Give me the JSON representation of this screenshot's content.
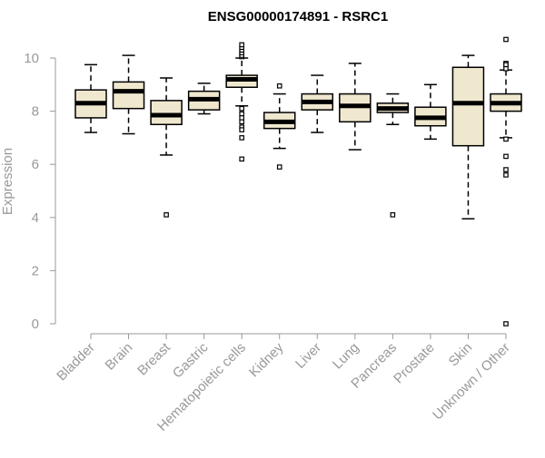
{
  "chart_data": {
    "type": "boxplot",
    "title": "ENSG00000174891 - RSRC1",
    "xlabel": "",
    "ylabel": "Expression",
    "ylim": [
      0,
      10.7
    ],
    "yticks": [
      0,
      2,
      4,
      6,
      8,
      10
    ],
    "grid": false,
    "legend": "none",
    "box_fill": "#efe8cf",
    "outlier_style": "open-square",
    "categories": [
      "Bladder",
      "Brain",
      "Breast",
      "Gastric",
      "Hematopoietic cells",
      "Kidney",
      "Liver",
      "Lung",
      "Pancreas",
      "Prostate",
      "Skin",
      "Unknown / Other"
    ],
    "tick_labels": [
      "Bladder",
      "Brain",
      "Breast",
      "Gastric",
      "Hematopoietic cells",
      "Kidney",
      "Liver",
      "Lung",
      "Pancreas",
      "Prostate",
      "Skin",
      "Unknown / Other"
    ],
    "boxes": [
      {
        "category": "Bladder",
        "whisker_low": 7.2,
        "q1": 7.75,
        "median": 8.3,
        "q3": 8.8,
        "whisker_high": 9.75,
        "outliers": []
      },
      {
        "category": "Brain",
        "whisker_low": 7.15,
        "q1": 8.1,
        "median": 8.75,
        "q3": 9.1,
        "whisker_high": 10.1,
        "outliers": []
      },
      {
        "category": "Breast",
        "whisker_low": 6.35,
        "q1": 7.5,
        "median": 7.85,
        "q3": 8.4,
        "whisker_high": 9.25,
        "outliers": [
          4.1
        ]
      },
      {
        "category": "Gastric",
        "whisker_low": 7.9,
        "q1": 8.05,
        "median": 8.45,
        "q3": 8.75,
        "whisker_high": 9.05,
        "outliers": []
      },
      {
        "category": "Hematopoietic cells",
        "whisker_low": 8.2,
        "q1": 8.9,
        "median": 9.2,
        "q3": 9.35,
        "whisker_high": 10.0,
        "outliers": [
          10.05,
          10.1,
          10.2,
          10.3,
          10.4,
          10.5,
          8.1,
          7.9,
          7.75,
          7.6,
          7.4,
          7.3,
          7.0,
          6.2
        ]
      },
      {
        "category": "Kidney",
        "whisker_low": 6.6,
        "q1": 7.35,
        "median": 7.6,
        "q3": 7.95,
        "whisker_high": 8.65,
        "outliers": [
          8.95,
          5.9
        ]
      },
      {
        "category": "Liver",
        "whisker_low": 7.2,
        "q1": 8.05,
        "median": 8.35,
        "q3": 8.65,
        "whisker_high": 9.35,
        "outliers": []
      },
      {
        "category": "Lung",
        "whisker_low": 6.55,
        "q1": 7.6,
        "median": 8.2,
        "q3": 8.65,
        "whisker_high": 9.8,
        "outliers": []
      },
      {
        "category": "Pancreas",
        "whisker_low": 7.5,
        "q1": 7.95,
        "median": 8.1,
        "q3": 8.3,
        "whisker_high": 8.65,
        "outliers": [
          4.1
        ]
      },
      {
        "category": "Prostate",
        "whisker_low": 6.95,
        "q1": 7.45,
        "median": 7.75,
        "q3": 8.15,
        "whisker_high": 9.0,
        "outliers": []
      },
      {
        "category": "Skin",
        "whisker_low": 3.95,
        "q1": 6.7,
        "median": 8.3,
        "q3": 9.65,
        "whisker_high": 10.1,
        "outliers": []
      },
      {
        "category": "Unknown / Other",
        "whisker_low": 7.0,
        "q1": 8.0,
        "median": 8.3,
        "q3": 8.65,
        "whisker_high": 9.55,
        "outliers": [
          10.7,
          9.8,
          9.75,
          9.6,
          6.95,
          6.3,
          5.8,
          5.6,
          0.0
        ]
      }
    ]
  }
}
